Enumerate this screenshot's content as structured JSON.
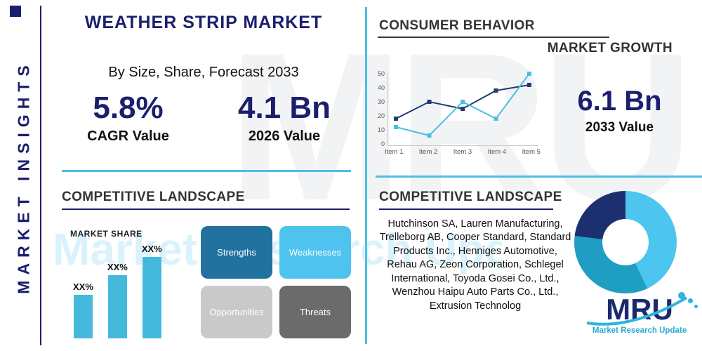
{
  "brand": {
    "navy": "#1b1f6e",
    "teal": "#4cc0e2",
    "light_blue": "#55c6f0"
  },
  "sidebar": {
    "vertical_label": "MARKET INSIGHTS"
  },
  "header": {
    "title": "WEATHER STRIP MARKET",
    "subtitle": "By Size, Share, Forecast 2033"
  },
  "stats": {
    "cagr": {
      "value": "5.8%",
      "label": "CAGR Value"
    },
    "value_2026": {
      "value": "4.1 Bn",
      "label": "2026 Value"
    },
    "value_2033": {
      "value": "6.1 Bn",
      "label": "2033 Value"
    }
  },
  "sections": {
    "consumer_behavior": {
      "title": "CONSUMER BEHAVIOR",
      "subtitle": "MARKET GROWTH"
    },
    "competitive_left": {
      "title": "COMPETITIVE LANDSCAPE",
      "market_share_label": "MARKET SHARE"
    },
    "competitive_right": {
      "title": "COMPETITIVE LANDSCAPE",
      "companies": "Hutchinson SA, Lauren Manufacturing, Trelleborg AB, Cooper Standard, Standard Products Inc., Henniges Automotive, Rehau AG, Zeon Corporation, Schlegel International, Toyoda Gosei Co., Ltd., Wenzhou Haipu Auto Parts Co., Ltd., Extrusion Technolog"
    }
  },
  "swot": {
    "items": [
      {
        "label": "Strengths",
        "color": "#21729f"
      },
      {
        "label": "Weaknesses",
        "color": "#4fc3f0"
      },
      {
        "label": "Opportunities",
        "color": "#c9c9c9"
      },
      {
        "label": "Threats",
        "color": "#6b6b6b"
      }
    ]
  },
  "chart_data": [
    {
      "type": "line",
      "title": "Consumer Behavior / Market Growth",
      "x": [
        "Item 1",
        "Item 2",
        "Item 3",
        "Item 4",
        "Item 5"
      ],
      "series": [
        {
          "name": "navy-series",
          "color": "#203a72",
          "values": [
            18,
            30,
            25,
            38,
            42
          ]
        },
        {
          "name": "teal-series",
          "color": "#49bfdf",
          "values": [
            12,
            6,
            30,
            18,
            50
          ]
        }
      ],
      "ylim": [
        0,
        50
      ],
      "yticks": [
        0,
        10,
        20,
        30,
        40,
        50
      ],
      "grid": false,
      "legend": "none"
    },
    {
      "type": "bar",
      "title": "MARKET SHARE",
      "categories": [
        "XX%",
        "XX%",
        "XX%"
      ],
      "values": [
        48,
        69,
        89
      ],
      "ylim": [
        0,
        100
      ],
      "bar_color": "#45b9dc"
    },
    {
      "type": "pie",
      "donut": true,
      "slices": [
        {
          "label": "light-blue-segment",
          "value": 43,
          "color": "#4cc5ef"
        },
        {
          "label": "teal-segment",
          "value": 34,
          "color": "#1f9ec4"
        },
        {
          "label": "navy-segment",
          "value": 23,
          "color": "#1c2f6e"
        }
      ]
    }
  ],
  "watermark": {
    "brand": "MRU",
    "text": "Market Research Update"
  },
  "logo": {
    "name": "MRU",
    "tagline": "Market Research Update"
  }
}
